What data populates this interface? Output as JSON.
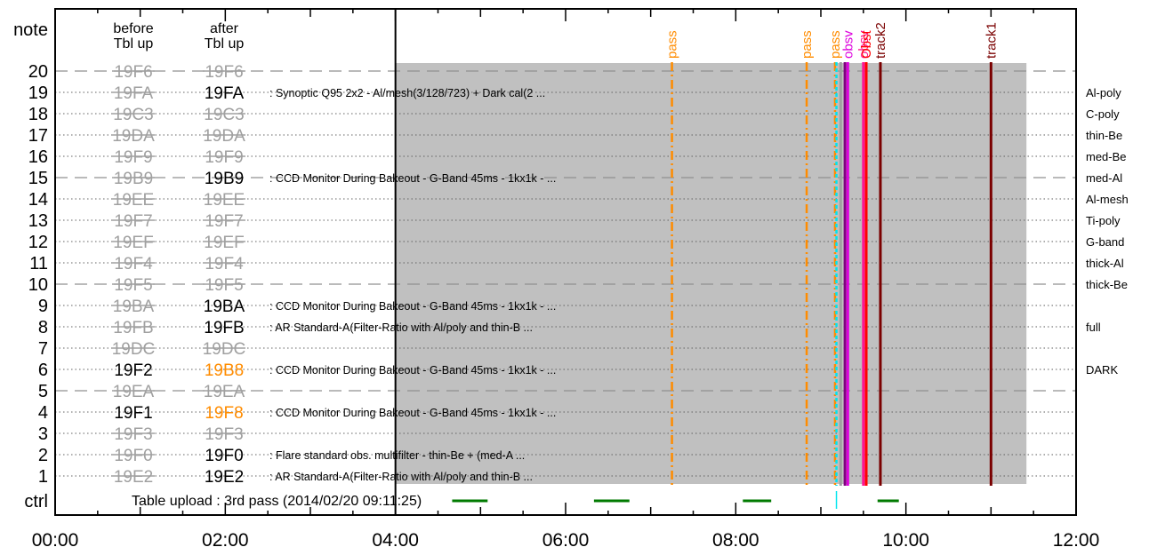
{
  "chart_data": {
    "type": "timeline",
    "x_range": [
      "00:00",
      "12:00"
    ],
    "x_ticks": [
      "00:00",
      "02:00",
      "04:00",
      "06:00",
      "08:00",
      "10:00",
      "12:00"
    ],
    "y_axis_title": "note",
    "y_rows": [
      "20",
      "19",
      "18",
      "17",
      "16",
      "15",
      "14",
      "13",
      "12",
      "11",
      "10",
      "9",
      "8",
      "7",
      "6",
      "5",
      "4",
      "3",
      "2",
      "1"
    ],
    "ctrl_label": "ctrl",
    "col_before_header": [
      "before",
      "Tbl up"
    ],
    "col_after_header": [
      "after",
      "Tbl up"
    ],
    "table_entries": [
      {
        "row": 20,
        "before": "19F6",
        "after": "19F6",
        "before_style": "struck",
        "after_style": "struck"
      },
      {
        "row": 19,
        "before": "19FA",
        "after": "19FA",
        "before_style": "struck",
        "after_style": "active",
        "desc": "Synoptic Q95 2x2 - Al/mesh(3/128/723) + Dark cal(2 ..."
      },
      {
        "row": 18,
        "before": "19C3",
        "after": "19C3",
        "before_style": "struck",
        "after_style": "struck"
      },
      {
        "row": 17,
        "before": "19DA",
        "after": "19DA",
        "before_style": "struck",
        "after_style": "struck"
      },
      {
        "row": 16,
        "before": "19F9",
        "after": "19F9",
        "before_style": "struck",
        "after_style": "struck"
      },
      {
        "row": 15,
        "before": "19B9",
        "after": "19B9",
        "before_style": "struck",
        "after_style": "active",
        "desc": "CCD Monitor During Bakeout - G-Band 45ms - 1kx1k - ..."
      },
      {
        "row": 14,
        "before": "19EE",
        "after": "19EE",
        "before_style": "struck",
        "after_style": "struck"
      },
      {
        "row": 13,
        "before": "19F7",
        "after": "19F7",
        "before_style": "struck",
        "after_style": "struck"
      },
      {
        "row": 12,
        "before": "19EF",
        "after": "19EF",
        "before_style": "struck",
        "after_style": "struck"
      },
      {
        "row": 11,
        "before": "19F4",
        "after": "19F4",
        "before_style": "struck",
        "after_style": "struck"
      },
      {
        "row": 10,
        "before": "19F5",
        "after": "19F5",
        "before_style": "struck",
        "after_style": "struck"
      },
      {
        "row": 9,
        "before": "19BA",
        "after": "19BA",
        "before_style": "struck",
        "after_style": "active",
        "desc": "CCD Monitor During Bakeout - G-Band 45ms - 1kx1k - ..."
      },
      {
        "row": 8,
        "before": "19FB",
        "after": "19FB",
        "before_style": "struck",
        "after_style": "active",
        "desc": "AR Standard-A(Filter-Ratio with Al/poly and thin-B ..."
      },
      {
        "row": 7,
        "before": "19DC",
        "after": "19DC",
        "before_style": "struck",
        "after_style": "struck"
      },
      {
        "row": 6,
        "before": "19F2",
        "after": "19B8",
        "before_style": "active",
        "after_style": "changed",
        "desc": "CCD Monitor During Bakeout - G-Band 45ms - 1kx1k - ..."
      },
      {
        "row": 5,
        "before": "19EA",
        "after": "19EA",
        "before_style": "struck",
        "after_style": "struck"
      },
      {
        "row": 4,
        "before": "19F1",
        "after": "19F8",
        "before_style": "active",
        "after_style": "changed",
        "desc": "CCD Monitor During Bakeout - G-Band 45ms - 1kx1k - ..."
      },
      {
        "row": 3,
        "before": "19F3",
        "after": "19F3",
        "before_style": "struck",
        "after_style": "struck"
      },
      {
        "row": 2,
        "before": "19F0",
        "after": "19F0",
        "before_style": "struck",
        "after_style": "active",
        "desc": "Flare standard obs. multifilter - thin-Be + (med-A ..."
      },
      {
        "row": 1,
        "before": "19E2",
        "after": "19E2",
        "before_style": "struck",
        "after_style": "active",
        "desc": "AR Standard-A(Filter-Ratio with Al/poly and thin-B ..."
      }
    ],
    "right_labels": [
      {
        "row": 19,
        "text": "Al-poly"
      },
      {
        "row": 18,
        "text": "C-poly"
      },
      {
        "row": 17,
        "text": "thin-Be"
      },
      {
        "row": 16,
        "text": "med-Be"
      },
      {
        "row": 15,
        "text": "med-Al"
      },
      {
        "row": 14,
        "text": "Al-mesh"
      },
      {
        "row": 13,
        "text": "Ti-poly"
      },
      {
        "row": 12,
        "text": "G-band"
      },
      {
        "row": 11,
        "text": "thick-Al"
      },
      {
        "row": 10,
        "text": "thick-Be"
      },
      {
        "row": 8,
        "text": "full"
      },
      {
        "row": 6,
        "text": "DARK"
      }
    ],
    "upload_time": "04:00",
    "shaded_span": [
      "04:00",
      "11:25"
    ],
    "event_lines": [
      {
        "time": "07:15",
        "label": "pass",
        "color": "#ff8c00",
        "style": "dashdot"
      },
      {
        "time": "08:50",
        "label": "pass",
        "color": "#ff8c00",
        "style": "dashdot"
      },
      {
        "time": "09:10",
        "label": "pass",
        "color": "#ff8c00",
        "style": "dashdot"
      },
      {
        "time": "09:11",
        "label": "",
        "color": "#00e5ee",
        "style": "dashed"
      },
      {
        "time": "09:14",
        "label": "",
        "color": "#a0a0a0",
        "style": "solid"
      },
      {
        "time": "09:17",
        "label": "",
        "color": "#800080",
        "style": "solid"
      },
      {
        "time": "09:19",
        "label": "obsv",
        "color": "#dd00dd",
        "style": "solid"
      },
      {
        "time": "09:30",
        "label": "obsv",
        "color": "#ff1493",
        "style": "solid"
      },
      {
        "time": "09:32",
        "label": "Obst",
        "color": "#ff0000",
        "style": "solid"
      },
      {
        "time": "09:42",
        "label": "track2",
        "color": "#7a0000",
        "style": "solid"
      },
      {
        "time": "11:00",
        "label": "track1",
        "color": "#7a0000",
        "style": "solid"
      }
    ],
    "ctrl_text": "Table upload : 3rd pass (2014/02/20 09:11:25)",
    "ctrl_segments": [
      [
        "04:40",
        "05:05"
      ],
      [
        "06:20",
        "06:45"
      ],
      [
        "08:05",
        "08:25"
      ],
      [
        "09:40",
        "09:55"
      ]
    ],
    "ctrl_marker": "09:11"
  }
}
